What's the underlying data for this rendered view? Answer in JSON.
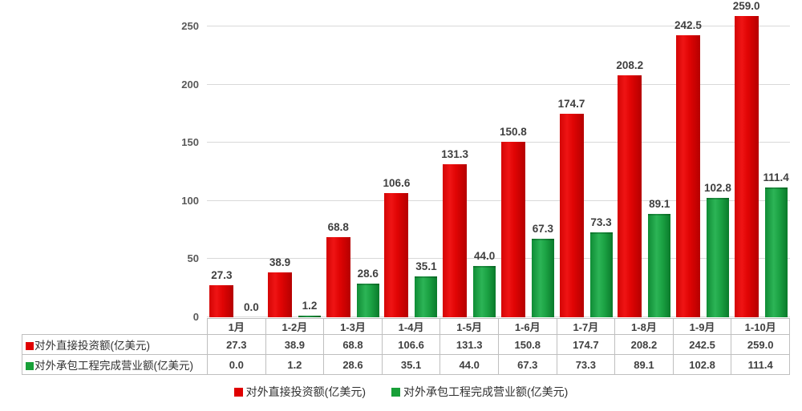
{
  "chart_data": {
    "type": "bar",
    "title": "",
    "categories": [
      "1月",
      "1-2月",
      "1-3月",
      "1-4月",
      "1-5月",
      "1-6月",
      "1-7月",
      "1-8月",
      "1-9月",
      "1-10月"
    ],
    "series": [
      {
        "name": "对外直接投资额(亿美元)",
        "color": "#e00000",
        "values": [
          27.3,
          38.9,
          68.8,
          106.6,
          131.3,
          150.8,
          174.7,
          208.2,
          242.5,
          259.0
        ]
      },
      {
        "name": "对外承包工程完成营业额(亿美元)",
        "color": "#18a038",
        "values": [
          0.0,
          1.2,
          28.6,
          35.1,
          44.0,
          67.3,
          73.3,
          89.1,
          102.8,
          111.4
        ]
      }
    ],
    "ylim": [
      0,
      250
    ],
    "yticks": [
      0,
      50,
      100,
      150,
      200,
      250
    ],
    "grid": true,
    "value_labels": true,
    "legend_position": "bottom",
    "data_table_shown": true,
    "colors": {
      "gridline": "#d9d9d9",
      "tick_label": "#595959",
      "value_label": "#3f3f3f",
      "table_border": "#bfbfbf",
      "background": "#ffffff"
    }
  }
}
